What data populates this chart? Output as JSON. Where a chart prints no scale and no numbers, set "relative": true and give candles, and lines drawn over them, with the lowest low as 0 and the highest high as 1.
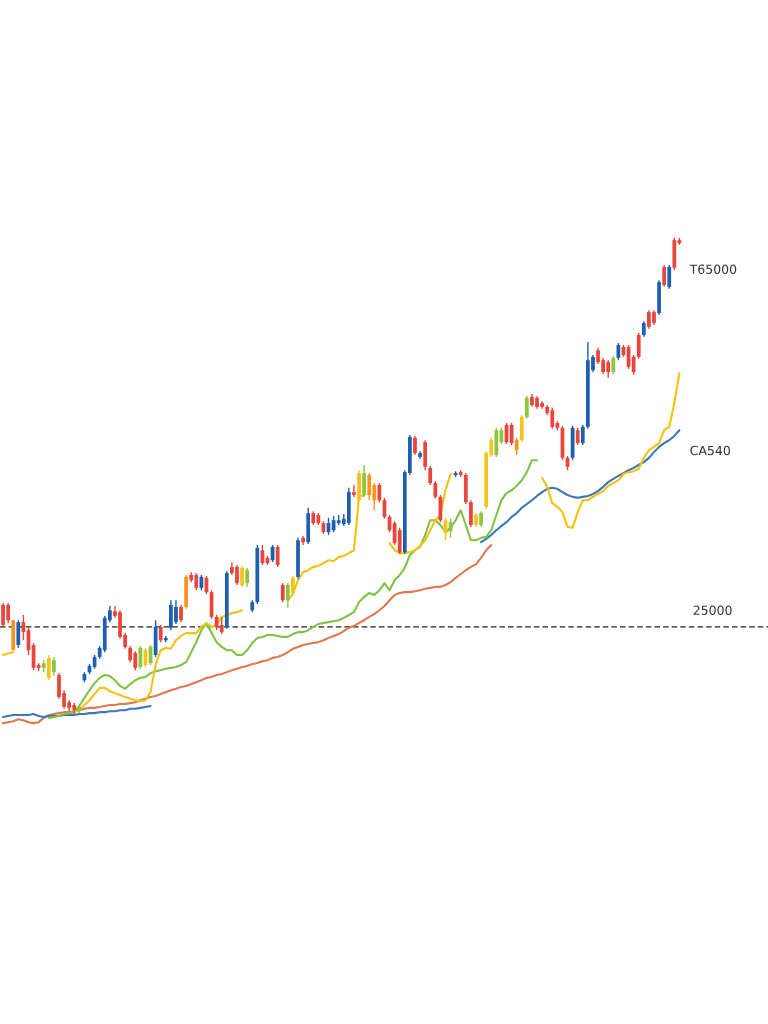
{
  "chart_data": {
    "type": "candlestick",
    "relative": true,
    "categories": [
      null,
      null,
      null,
      null,
      null,
      null,
      null,
      null,
      null,
      null,
      null,
      null,
      null,
      null,
      null,
      null,
      null,
      null,
      null,
      null,
      null,
      null,
      null,
      null,
      null,
      null,
      null,
      null,
      null,
      null,
      null,
      null,
      null,
      null,
      null,
      null,
      null,
      null,
      null,
      null,
      null,
      null,
      null,
      null,
      null,
      null,
      null,
      null,
      null,
      null,
      null,
      null,
      null,
      null,
      null,
      null,
      null,
      null,
      null,
      null,
      null,
      null,
      null,
      null,
      null,
      null,
      null,
      null,
      null,
      null,
      null,
      null,
      null,
      null,
      null,
      null,
      null,
      null,
      null,
      null,
      null,
      null,
      null,
      null,
      null,
      null,
      null,
      null,
      null,
      null,
      null,
      null,
      null,
      null,
      null,
      null,
      null,
      null,
      null,
      null,
      null,
      null,
      null,
      null,
      null,
      null,
      null,
      null,
      null,
      null,
      null,
      null,
      null,
      null,
      null,
      null,
      null,
      null,
      null,
      null,
      null,
      null,
      null,
      null,
      null,
      null,
      null,
      null,
      null,
      null,
      null,
      null,
      null,
      null
    ],
    "ohlc": [
      [
        0.229,
        0.233,
        0.183,
        0.187
      ],
      [
        0.229,
        0.233,
        0.191,
        0.197
      ],
      [
        0.134,
        0.197,
        0.134,
        0.197
      ],
      [
        0.145,
        0.197,
        0.139,
        0.193
      ],
      [
        0.193,
        0.208,
        0.155,
        0.172
      ],
      [
        0.176,
        0.181,
        0.124,
        0.134
      ],
      [
        0.145,
        0.149,
        0.092,
        0.097
      ],
      [
        0.103,
        0.107,
        0.09,
        0.097
      ],
      [
        0.097,
        0.113,
        0.088,
        0.107
      ],
      [
        0.076,
        0.124,
        0.071,
        0.118
      ],
      [
        0.088,
        0.12,
        0.08,
        0.113
      ],
      [
        0.082,
        0.086,
        0.032,
        0.036
      ],
      [
        0.044,
        0.05,
        0.011,
        0.015
      ],
      [
        0.025,
        0.029,
        0.006,
        0.013
      ],
      [
        0.019,
        0.023,
        0,
        0.008
      ],
      [
        0.006,
        0.019,
        0.002,
        0.015
      ],
      [
        0.071,
        0.088,
        0.067,
        0.084
      ],
      [
        0.088,
        0.105,
        0.084,
        0.101
      ],
      [
        0.099,
        0.124,
        0.095,
        0.12
      ],
      [
        0.12,
        0.143,
        0.116,
        0.139
      ],
      [
        0.134,
        0.206,
        0.13,
        0.202
      ],
      [
        0.197,
        0.227,
        0.193,
        0.218
      ],
      [
        0.216,
        0.227,
        0.202,
        0.206
      ],
      [
        0.214,
        0.218,
        0.158,
        0.162
      ],
      [
        0.166,
        0.17,
        0.137,
        0.141
      ],
      [
        0.139,
        0.143,
        0.109,
        0.113
      ],
      [
        0.128,
        0.132,
        0.092,
        0.097
      ],
      [
        0.099,
        0.143,
        0.095,
        0.139
      ],
      [
        0.103,
        0.139,
        0.099,
        0.134
      ],
      [
        0.107,
        0.145,
        0.103,
        0.141
      ],
      [
        0.124,
        0.197,
        0.12,
        0.183
      ],
      [
        0.183,
        0.187,
        0.151,
        0.155
      ],
      [
        0.155,
        0.164,
        0.151,
        0.16
      ],
      [
        0.181,
        0.239,
        0.176,
        0.229
      ],
      [
        0.193,
        0.239,
        0.189,
        0.225
      ],
      [
        0.225,
        0.229,
        0.193,
        0.197
      ],
      [
        0.225,
        0.292,
        0.221,
        0.288
      ],
      [
        0.292,
        0.298,
        0.277,
        0.281
      ],
      [
        0.292,
        0.296,
        0.26,
        0.265
      ],
      [
        0.265,
        0.292,
        0.26,
        0.288
      ],
      [
        0.286,
        0.29,
        0.252,
        0.256
      ],
      [
        0.256,
        0.26,
        0.2,
        0.204
      ],
      [
        0.204,
        0.208,
        0.176,
        0.183
      ],
      [
        0.187,
        0.204,
        0.168,
        0.172
      ],
      [
        0.183,
        0.3,
        0.179,
        0.296
      ],
      [
        0.309,
        0.319,
        0.292,
        0.296
      ],
      [
        0.309,
        0.313,
        0.271,
        0.275
      ],
      [
        0.271,
        0.311,
        0.267,
        0.307
      ],
      [
        0.275,
        0.307,
        0.267,
        0.302
      ],
      [
        0.218,
        0.239,
        0.214,
        0.235
      ],
      [
        0.235,
        0.355,
        0.231,
        0.349
      ],
      [
        0.344,
        0.355,
        0.313,
        0.317
      ],
      [
        0.328,
        0.332,
        0.313,
        0.317
      ],
      [
        0.323,
        0.355,
        0.319,
        0.351
      ],
      [
        0.351,
        0.355,
        0.309,
        0.313
      ],
      [
        0.271,
        0.275,
        0.235,
        0.239
      ],
      [
        0.239,
        0.275,
        0.223,
        0.271
      ],
      [
        0.254,
        0.29,
        0.25,
        0.286
      ],
      [
        0.288,
        0.37,
        0.284,
        0.365
      ],
      [
        0.37,
        0.374,
        0.355,
        0.361
      ],
      [
        0.361,
        0.433,
        0.357,
        0.422
      ],
      [
        0.422,
        0.426,
        0.397,
        0.401
      ],
      [
        0.418,
        0.422,
        0.397,
        0.401
      ],
      [
        0.401,
        0.405,
        0.378,
        0.382
      ],
      [
        0.382,
        0.412,
        0.376,
        0.401
      ],
      [
        0.386,
        0.416,
        0.382,
        0.407
      ],
      [
        0.401,
        0.418,
        0.397,
        0.407
      ],
      [
        0.399,
        0.42,
        0.395,
        0.41
      ],
      [
        0.401,
        0.475,
        0.397,
        0.466
      ],
      [
        0.466,
        0.481,
        0.456,
        0.46
      ],
      [
        0.449,
        0.512,
        0.445,
        0.506
      ],
      [
        0.46,
        0.523,
        0.456,
        0.506
      ],
      [
        0.46,
        0.506,
        0.449,
        0.502
      ],
      [
        0.449,
        0.485,
        0.428,
        0.481
      ],
      [
        0.481,
        0.485,
        0.445,
        0.449
      ],
      [
        0.449,
        0.454,
        0.41,
        0.414
      ],
      [
        0.414,
        0.418,
        0.382,
        0.386
      ],
      [
        0.401,
        0.405,
        0.355,
        0.359
      ],
      [
        0.386,
        0.391,
        0.336,
        0.34
      ],
      [
        0.34,
        0.512,
        0.336,
        0.508
      ],
      [
        0.506,
        0.586,
        0.502,
        0.582
      ],
      [
        0.58,
        0.584,
        0.544,
        0.548
      ],
      [
        0.54,
        0.552,
        0.536,
        0.548
      ],
      [
        0.571,
        0.575,
        0.512,
        0.519
      ],
      [
        0.517,
        0.521,
        0.481,
        0.485
      ],
      [
        0.485,
        0.489,
        0.452,
        0.456
      ],
      [
        0.456,
        0.46,
        0.403,
        0.407
      ],
      [
        0.38,
        0.412,
        0.365,
        0.407
      ],
      [
        0.384,
        0.41,
        0.37,
        0.403
      ],
      [
        0.502,
        0.51,
        0.498,
        0.506
      ],
      [
        0.508,
        0.512,
        0.498,
        0.502
      ],
      [
        0.502,
        0.506,
        0.441,
        0.445
      ],
      [
        0.445,
        0.449,
        0.393,
        0.397
      ],
      [
        0.397,
        0.422,
        0.393,
        0.418
      ],
      [
        0.397,
        0.426,
        0.393,
        0.422
      ],
      [
        0.435,
        0.552,
        0.431,
        0.548
      ],
      [
        0.544,
        0.58,
        0.54,
        0.575
      ],
      [
        0.544,
        0.601,
        0.54,
        0.596
      ],
      [
        0.571,
        0.601,
        0.567,
        0.596
      ],
      [
        0.607,
        0.611,
        0.567,
        0.571
      ],
      [
        0.607,
        0.611,
        0.565,
        0.569
      ],
      [
        0.554,
        0.58,
        0.544,
        0.575
      ],
      [
        0.575,
        0.628,
        0.571,
        0.624
      ],
      [
        0.624,
        0.668,
        0.62,
        0.664
      ],
      [
        0.666,
        0.672,
        0.645,
        0.649
      ],
      [
        0.664,
        0.668,
        0.641,
        0.645
      ],
      [
        0.653,
        0.657,
        0.641,
        0.645
      ],
      [
        0.645,
        0.649,
        0.628,
        0.632
      ],
      [
        0.638,
        0.643,
        0.599,
        0.603
      ],
      [
        0.611,
        0.615,
        0.596,
        0.601
      ],
      [
        0.601,
        0.605,
        0.533,
        0.538
      ],
      [
        0.538,
        0.542,
        0.512,
        0.519
      ],
      [
        0.538,
        0.605,
        0.533,
        0.601
      ],
      [
        0.596,
        0.601,
        0.565,
        0.569
      ],
      [
        0.569,
        0.607,
        0.565,
        0.603
      ],
      [
        0.603,
        0.781,
        0.599,
        0.743
      ],
      [
        0.722,
        0.754,
        0.718,
        0.75
      ],
      [
        0.764,
        0.769,
        0.735,
        0.739
      ],
      [
        0.743,
        0.748,
        0.714,
        0.718
      ],
      [
        0.739,
        0.743,
        0.706,
        0.718
      ],
      [
        0.718,
        0.752,
        0.714,
        0.748
      ],
      [
        0.748,
        0.779,
        0.743,
        0.775
      ],
      [
        0.771,
        0.775,
        0.75,
        0.754
      ],
      [
        0.771,
        0.775,
        0.725,
        0.729
      ],
      [
        0.75,
        0.754,
        0.712,
        0.718
      ],
      [
        0.796,
        0.8,
        0.746,
        0.75
      ],
      [
        0.796,
        0.825,
        0.792,
        0.821
      ],
      [
        0.844,
        0.848,
        0.809,
        0.813
      ],
      [
        0.844,
        0.848,
        0.817,
        0.821
      ],
      [
        0.842,
        0.911,
        0.838,
        0.907
      ],
      [
        0.939,
        0.943,
        0.897,
        0.901
      ],
      [
        0.897,
        0.943,
        0.893,
        0.939
      ],
      [
        0.995,
        1,
        0.932,
        0.937
      ],
      [
        0.995,
        1,
        0.985,
        0.989
      ]
    ],
    "colors": [
      "#e8463c",
      "#e8463c",
      "#f7941d",
      "#1e5fae",
      "#e8463c",
      "#e8463c",
      "#e8463c",
      "#e8463c",
      "#8cc63f",
      "#f6c21c",
      "#8cc63f",
      "#e8463c",
      "#e8463c",
      "#e8463c",
      "#e8463c",
      "#8cc63f",
      "#1e5fae",
      "#1e5fae",
      "#1e5fae",
      "#1e5fae",
      "#1e5fae",
      "#1e5fae",
      "#e8463c",
      "#e8463c",
      "#e8463c",
      "#e8463c",
      "#e8463c",
      "#8cc63f",
      "#f6c21c",
      "#8cc63f",
      "#1e5fae",
      "#e8463c",
      "#1e5fae",
      "#1e5fae",
      "#1e5fae",
      "#e8463c",
      "#f7941d",
      "#e8463c",
      "#e8463c",
      "#1e5fae",
      "#e8463c",
      "#e8463c",
      "#e8463c",
      "#e8463c",
      "#1e5fae",
      "#e8463c",
      "#e8463c",
      "#f6c21c",
      "#8cc63f",
      "#1e5fae",
      "#1e5fae",
      "#e8463c",
      "#e8463c",
      "#1e5fae",
      "#e8463c",
      "#e8463c",
      "#8cc63f",
      "#f6c21c",
      "#1e5fae",
      "#e8463c",
      "#1e5fae",
      "#e8463c",
      "#e8463c",
      "#e8463c",
      "#1e5fae",
      "#1e5fae",
      "#1e5fae",
      "#1e5fae",
      "#1e5fae",
      "#e8463c",
      "#f6c21c",
      "#8cc63f",
      "#f7941d",
      "#f7941d",
      "#e8463c",
      "#e8463c",
      "#e8463c",
      "#e8463c",
      "#e8463c",
      "#1e5fae",
      "#1e5fae",
      "#e8463c",
      "#1e5fae",
      "#e8463c",
      "#e8463c",
      "#e8463c",
      "#e8463c",
      "#f6c21c",
      "#8cc63f",
      "#1e5fae",
      "#e8463c",
      "#e8463c",
      "#e8463c",
      "#f6c21c",
      "#8cc63f",
      "#f6c21c",
      "#f6c21c",
      "#8cc63f",
      "#8cc63f",
      "#e8463c",
      "#e8463c",
      "#f7941d",
      "#f6c21c",
      "#8cc63f",
      "#e8463c",
      "#e8463c",
      "#e8463c",
      "#e8463c",
      "#e8463c",
      "#e8463c",
      "#e8463c",
      "#e8463c",
      "#1e5fae",
      "#e8463c",
      "#1e5fae",
      "#1e5fae",
      "#1e5fae",
      "#e8463c",
      "#e8463c",
      "#e8463c",
      "#8cc63f",
      "#1e5fae",
      "#e8463c",
      "#e8463c",
      "#e8463c",
      "#e8463c",
      "#1e5fae",
      "#e8463c",
      "#e8463c",
      "#1e5fae",
      "#e8463c",
      "#1e5fae",
      "#e8463c",
      "#e8463c"
    ],
    "series": [
      {
        "type": "line",
        "color": "#e07850",
        "values": [
          -0.019,
          -0.017,
          -0.015,
          -0.011,
          -0.013,
          -0.017,
          -0.019,
          -0.017,
          -0.008,
          -0.002,
          0,
          0.002,
          0.004,
          0.004,
          0.006,
          0.008,
          0.011,
          0.013,
          0.013,
          0.015,
          0.017,
          0.019,
          0.019,
          0.021,
          0.021,
          0.023,
          0.025,
          0.029,
          0.032,
          0.036,
          0.038,
          0.042,
          0.046,
          0.05,
          0.053,
          0.057,
          0.059,
          0.063,
          0.067,
          0.071,
          0.076,
          0.078,
          0.082,
          0.084,
          0.088,
          0.092,
          0.095,
          0.099,
          0.101,
          0.105,
          0.107,
          0.111,
          0.113,
          0.118,
          0.12,
          0.124,
          0.13,
          0.137,
          0.141,
          0.145,
          0.147,
          0.149,
          0.151,
          0.155,
          0.16,
          0.164,
          0.168,
          0.174,
          0.181,
          0.185,
          0.191,
          0.197,
          0.204,
          0.21,
          0.218,
          0.227,
          0.239,
          0.25,
          0.254,
          0.256,
          0.256,
          0.258,
          0.26,
          0.263,
          0.265,
          0.267,
          0.267,
          0.271,
          0.277,
          0.286,
          0.294,
          0.302,
          0.309,
          0.315,
          0.328,
          0.344,
          0.355,
          null,
          null,
          null,
          null,
          null,
          null,
          null,
          null,
          null,
          null,
          null,
          null,
          null,
          null,
          null,
          null,
          null,
          null,
          null,
          null,
          null,
          null,
          null,
          null,
          null,
          null,
          null,
          null,
          null,
          null,
          null,
          null,
          null,
          null,
          null,
          null,
          null
        ]
      },
      {
        "type": "line",
        "color": "#3a78b8",
        "values": [
          -0.006,
          -0.004,
          -0.002,
          -0.002,
          -0.002,
          -0.002,
          0,
          -0.004,
          -0.006,
          -0.004,
          -0.004,
          -0.004,
          -0.002,
          -0.002,
          -0.002,
          0,
          0,
          0.002,
          0.002,
          0.004,
          0.004,
          0.006,
          0.006,
          0.008,
          0.008,
          0.011,
          0.011,
          0.013,
          0.015,
          0.017,
          null,
          null,
          null,
          null,
          null,
          null,
          null,
          null,
          null,
          null,
          null,
          null,
          null,
          null,
          null,
          null,
          null,
          null,
          null,
          null,
          null,
          null,
          null,
          null,
          null,
          null,
          null,
          null,
          null,
          null,
          null,
          null,
          null,
          null,
          null,
          null,
          null,
          null,
          null,
          null,
          null,
          null,
          null,
          null,
          null,
          null,
          null,
          null,
          null,
          null,
          null,
          null,
          null,
          null,
          null,
          null,
          null,
          null,
          null,
          null,
          null,
          null,
          null,
          null,
          0.361,
          0.368,
          0.376,
          0.386,
          0.395,
          0.403,
          0.414,
          0.422,
          0.433,
          0.441,
          0.449,
          0.458,
          0.466,
          0.473,
          0.475,
          0.473,
          0.466,
          0.46,
          0.456,
          0.454,
          0.456,
          0.458,
          0.462,
          0.468,
          0.477,
          0.487,
          0.494,
          0.5,
          0.506,
          0.512,
          0.517,
          0.523,
          0.529,
          0.538,
          0.55,
          0.561,
          0.569,
          0.575,
          0.584,
          0.596
        ]
      },
      {
        "type": "line",
        "color": "#7dc242",
        "values": [
          null,
          null,
          null,
          null,
          null,
          null,
          null,
          null,
          null,
          -0.008,
          -0.006,
          -0.004,
          0,
          0.002,
          0.004,
          0.017,
          0.034,
          0.05,
          0.065,
          0.076,
          0.082,
          0.08,
          0.071,
          0.059,
          0.053,
          0.063,
          0.071,
          0.076,
          0.078,
          0.086,
          0.09,
          0.092,
          0.095,
          0.097,
          0.099,
          0.103,
          0.109,
          0.13,
          0.151,
          0.176,
          0.191,
          0.17,
          0.151,
          0.141,
          0.134,
          0.134,
          0.124,
          0.124,
          0.134,
          0.149,
          0.16,
          0.162,
          0.166,
          0.166,
          0.164,
          0.162,
          0.162,
          0.168,
          0.172,
          0.172,
          0.176,
          0.183,
          0.189,
          0.191,
          0.193,
          0.195,
          0.197,
          0.202,
          0.208,
          0.214,
          0.235,
          0.246,
          0.254,
          0.25,
          0.26,
          0.275,
          0.26,
          0.281,
          0.292,
          0.307,
          0.334,
          0.344,
          0.351,
          0.376,
          0.407,
          0.407,
          0.397,
          0.382,
          0.391,
          0.407,
          0.428,
          0.397,
          0.365,
          0.365,
          0.37,
          0.372,
          0.386,
          0.418,
          0.449,
          0.464,
          0.47,
          0.479,
          0.491,
          0.508,
          0.533,
          0.533,
          null,
          null,
          null,
          null,
          null,
          null,
          null,
          null,
          null,
          null,
          null,
          null,
          null,
          null,
          null,
          null,
          null,
          null,
          null,
          null,
          null,
          null,
          null,
          null,
          null,
          null,
          null,
          null
        ]
      },
      {
        "type": "line",
        "color": "#f4c20d",
        "values": [
          null,
          null,
          null,
          null,
          null,
          null,
          null,
          null,
          null,
          null,
          null,
          null,
          null,
          null,
          0.004,
          0.008,
          0.019,
          0.029,
          0.042,
          0.055,
          0.055,
          0.048,
          0.044,
          0.04,
          0.036,
          0.032,
          0.029,
          0.027,
          0.029,
          0.046,
          0.103,
          0.134,
          0.139,
          0.137,
          0.155,
          0.164,
          0.17,
          0.17,
          0.17,
          0.183,
          0.191,
          0.183,
          0.187,
          0.204,
          0.208,
          0.212,
          0.214,
          0.218,
          null,
          null,
          null,
          null,
          null,
          null,
          null,
          null,
          0.239,
          0.252,
          0.281,
          0.298,
          0.302,
          0.309,
          0.311,
          0.317,
          0.323,
          0.321,
          0.33,
          0.332,
          0.338,
          0.344,
          0.456,
          0.46,
          null,
          null,
          null,
          null,
          0.359,
          0.344,
          0.338,
          0.338,
          0.34,
          0.344,
          0.353,
          0.365,
          0.386,
          0.407,
          0.418,
          0.47,
          0.504,
          null,
          null,
          null,
          null,
          null,
          null,
          null,
          null,
          null,
          null,
          null,
          null,
          null,
          null,
          null,
          null,
          null,
          0.496,
          0.477,
          0.443,
          0.435,
          0.424,
          0.393,
          0.391,
          0.424,
          0.449,
          0.449,
          0.456,
          0.462,
          0.468,
          0.479,
          0.485,
          0.491,
          0.504,
          0.508,
          0.51,
          0.515,
          0.538,
          0.554,
          0.561,
          0.569,
          0.596,
          0.603,
          0.653,
          0.716
        ]
      },
      {
        "type": "line",
        "color": "#f4c20d",
        "values": [
          0.124,
          0.127,
          0.13,
          null,
          null,
          null,
          null,
          null,
          null,
          null,
          null,
          null,
          null,
          null,
          null,
          null,
          null,
          null,
          null,
          null,
          null,
          null,
          null,
          null,
          null,
          null,
          null,
          null,
          null,
          null,
          null,
          null,
          null,
          null,
          null,
          null,
          null,
          null,
          null,
          null,
          null,
          null,
          null,
          null,
          null,
          null,
          null,
          null,
          null,
          null,
          null,
          null,
          null,
          null,
          null,
          null,
          null,
          null,
          null,
          null,
          null,
          null,
          null,
          null,
          null,
          null,
          null,
          null,
          null,
          null,
          null,
          null,
          null,
          null,
          null,
          null,
          null,
          null,
          null,
          null,
          null,
          null,
          null,
          null,
          null,
          null,
          null,
          null,
          null,
          null,
          null,
          null,
          null,
          null,
          null,
          null,
          null,
          null,
          null,
          null,
          null,
          null,
          null,
          null,
          null,
          null,
          null,
          null,
          null,
          null,
          null,
          null,
          null,
          null,
          null,
          null,
          null,
          null,
          null,
          null,
          null,
          null,
          null,
          null,
          null,
          null,
          null,
          null,
          null,
          null,
          null,
          null,
          null,
          null
        ]
      }
    ],
    "ref_lines": [
      {
        "axis": "y",
        "value": 0.183,
        "color": "#222222",
        "line_style": "dashed"
      }
    ],
    "annotations": [
      "T65000",
      "CA540",
      "25000"
    ]
  }
}
